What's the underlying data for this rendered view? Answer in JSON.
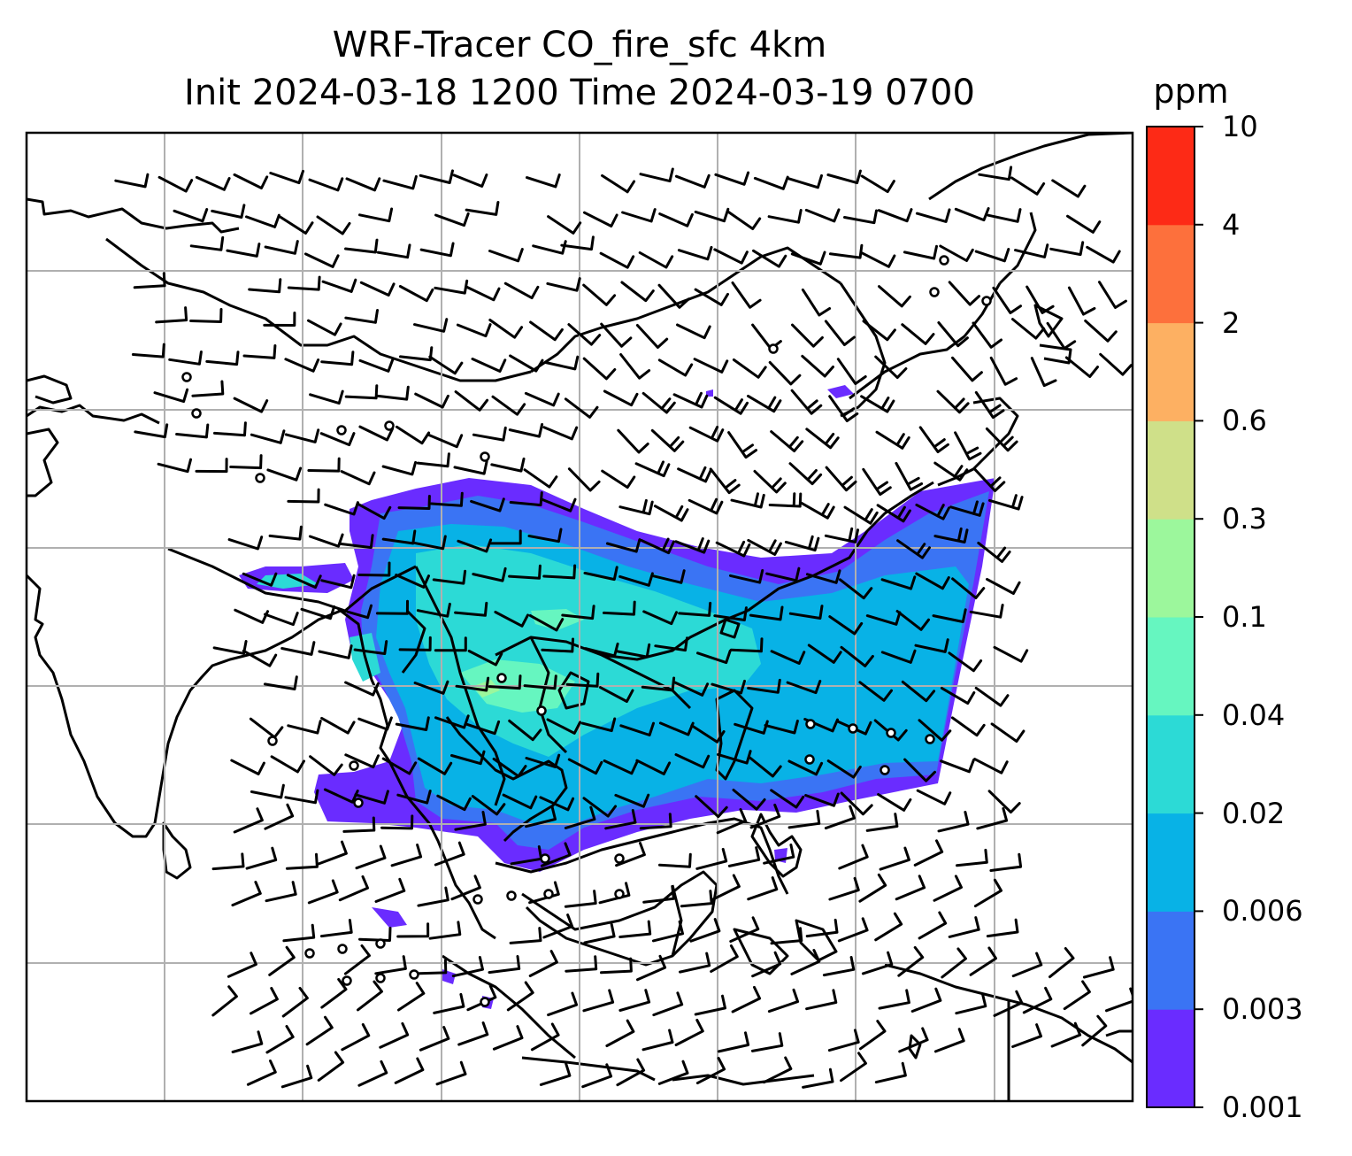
{
  "title": {
    "line1": "WRF-Tracer CO_fire_sfc 4km",
    "line2": "Init 2024-03-18 1200 Time 2024-03-19 0700"
  },
  "colorbar": {
    "unit": "ppm",
    "levels": [
      "0.001",
      "0.003",
      "0.006",
      "0.02",
      "0.04",
      "0.1",
      "0.3",
      "0.6",
      "2",
      "4",
      "10"
    ],
    "colors": [
      "#6a2cff",
      "#3a74f4",
      "#08b2e6",
      "#2cdad6",
      "#66f6c0",
      "#9cf79c",
      "#cfe089",
      "#fdb062",
      "#fd703c",
      "#fd2a16"
    ]
  },
  "map": {
    "type": "filled contour with wind barbs",
    "gridlines": true,
    "coastlines": true,
    "country_borders": true
  },
  "icons": {
    "wind_barb": "wind-barb-icon",
    "calm_wind": "calm-circle-icon"
  }
}
